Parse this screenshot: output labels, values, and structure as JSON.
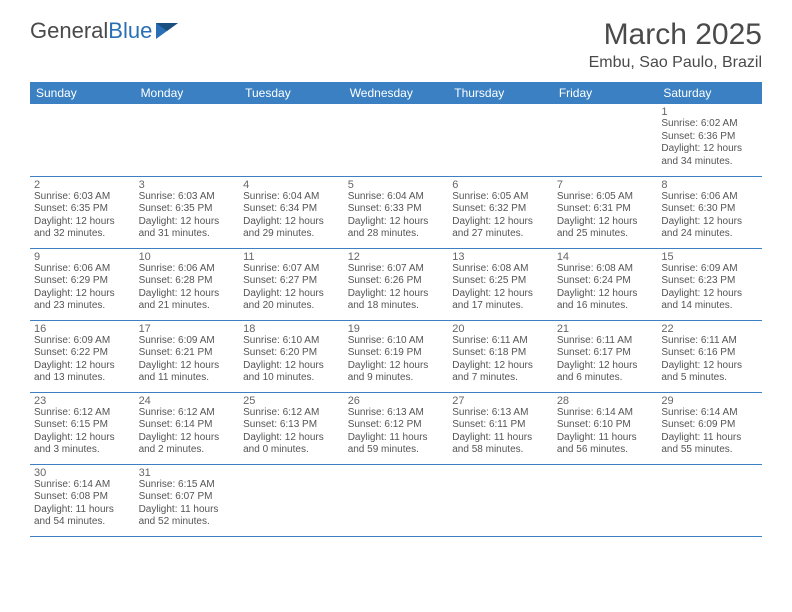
{
  "header": {
    "logo_general": "General",
    "logo_blue": "Blue",
    "title": "March 2025",
    "subtitle": "Embu, Sao Paulo, Brazil"
  },
  "colors": {
    "header_bg": "#3a80c3",
    "header_text": "#ffffff",
    "border": "#3a80c3",
    "text": "#555555",
    "title_text": "#4a4a4a"
  },
  "days_of_week": [
    "Sunday",
    "Monday",
    "Tuesday",
    "Wednesday",
    "Thursday",
    "Friday",
    "Saturday"
  ],
  "weeks": [
    [
      null,
      null,
      null,
      null,
      null,
      null,
      {
        "n": "1",
        "sunrise": "Sunrise: 6:02 AM",
        "sunset": "Sunset: 6:36 PM",
        "day1": "Daylight: 12 hours",
        "day2": "and 34 minutes."
      }
    ],
    [
      {
        "n": "2",
        "sunrise": "Sunrise: 6:03 AM",
        "sunset": "Sunset: 6:35 PM",
        "day1": "Daylight: 12 hours",
        "day2": "and 32 minutes."
      },
      {
        "n": "3",
        "sunrise": "Sunrise: 6:03 AM",
        "sunset": "Sunset: 6:35 PM",
        "day1": "Daylight: 12 hours",
        "day2": "and 31 minutes."
      },
      {
        "n": "4",
        "sunrise": "Sunrise: 6:04 AM",
        "sunset": "Sunset: 6:34 PM",
        "day1": "Daylight: 12 hours",
        "day2": "and 29 minutes."
      },
      {
        "n": "5",
        "sunrise": "Sunrise: 6:04 AM",
        "sunset": "Sunset: 6:33 PM",
        "day1": "Daylight: 12 hours",
        "day2": "and 28 minutes."
      },
      {
        "n": "6",
        "sunrise": "Sunrise: 6:05 AM",
        "sunset": "Sunset: 6:32 PM",
        "day1": "Daylight: 12 hours",
        "day2": "and 27 minutes."
      },
      {
        "n": "7",
        "sunrise": "Sunrise: 6:05 AM",
        "sunset": "Sunset: 6:31 PM",
        "day1": "Daylight: 12 hours",
        "day2": "and 25 minutes."
      },
      {
        "n": "8",
        "sunrise": "Sunrise: 6:06 AM",
        "sunset": "Sunset: 6:30 PM",
        "day1": "Daylight: 12 hours",
        "day2": "and 24 minutes."
      }
    ],
    [
      {
        "n": "9",
        "sunrise": "Sunrise: 6:06 AM",
        "sunset": "Sunset: 6:29 PM",
        "day1": "Daylight: 12 hours",
        "day2": "and 23 minutes."
      },
      {
        "n": "10",
        "sunrise": "Sunrise: 6:06 AM",
        "sunset": "Sunset: 6:28 PM",
        "day1": "Daylight: 12 hours",
        "day2": "and 21 minutes."
      },
      {
        "n": "11",
        "sunrise": "Sunrise: 6:07 AM",
        "sunset": "Sunset: 6:27 PM",
        "day1": "Daylight: 12 hours",
        "day2": "and 20 minutes."
      },
      {
        "n": "12",
        "sunrise": "Sunrise: 6:07 AM",
        "sunset": "Sunset: 6:26 PM",
        "day1": "Daylight: 12 hours",
        "day2": "and 18 minutes."
      },
      {
        "n": "13",
        "sunrise": "Sunrise: 6:08 AM",
        "sunset": "Sunset: 6:25 PM",
        "day1": "Daylight: 12 hours",
        "day2": "and 17 minutes."
      },
      {
        "n": "14",
        "sunrise": "Sunrise: 6:08 AM",
        "sunset": "Sunset: 6:24 PM",
        "day1": "Daylight: 12 hours",
        "day2": "and 16 minutes."
      },
      {
        "n": "15",
        "sunrise": "Sunrise: 6:09 AM",
        "sunset": "Sunset: 6:23 PM",
        "day1": "Daylight: 12 hours",
        "day2": "and 14 minutes."
      }
    ],
    [
      {
        "n": "16",
        "sunrise": "Sunrise: 6:09 AM",
        "sunset": "Sunset: 6:22 PM",
        "day1": "Daylight: 12 hours",
        "day2": "and 13 minutes."
      },
      {
        "n": "17",
        "sunrise": "Sunrise: 6:09 AM",
        "sunset": "Sunset: 6:21 PM",
        "day1": "Daylight: 12 hours",
        "day2": "and 11 minutes."
      },
      {
        "n": "18",
        "sunrise": "Sunrise: 6:10 AM",
        "sunset": "Sunset: 6:20 PM",
        "day1": "Daylight: 12 hours",
        "day2": "and 10 minutes."
      },
      {
        "n": "19",
        "sunrise": "Sunrise: 6:10 AM",
        "sunset": "Sunset: 6:19 PM",
        "day1": "Daylight: 12 hours",
        "day2": "and 9 minutes."
      },
      {
        "n": "20",
        "sunrise": "Sunrise: 6:11 AM",
        "sunset": "Sunset: 6:18 PM",
        "day1": "Daylight: 12 hours",
        "day2": "and 7 minutes."
      },
      {
        "n": "21",
        "sunrise": "Sunrise: 6:11 AM",
        "sunset": "Sunset: 6:17 PM",
        "day1": "Daylight: 12 hours",
        "day2": "and 6 minutes."
      },
      {
        "n": "22",
        "sunrise": "Sunrise: 6:11 AM",
        "sunset": "Sunset: 6:16 PM",
        "day1": "Daylight: 12 hours",
        "day2": "and 5 minutes."
      }
    ],
    [
      {
        "n": "23",
        "sunrise": "Sunrise: 6:12 AM",
        "sunset": "Sunset: 6:15 PM",
        "day1": "Daylight: 12 hours",
        "day2": "and 3 minutes."
      },
      {
        "n": "24",
        "sunrise": "Sunrise: 6:12 AM",
        "sunset": "Sunset: 6:14 PM",
        "day1": "Daylight: 12 hours",
        "day2": "and 2 minutes."
      },
      {
        "n": "25",
        "sunrise": "Sunrise: 6:12 AM",
        "sunset": "Sunset: 6:13 PM",
        "day1": "Daylight: 12 hours",
        "day2": "and 0 minutes."
      },
      {
        "n": "26",
        "sunrise": "Sunrise: 6:13 AM",
        "sunset": "Sunset: 6:12 PM",
        "day1": "Daylight: 11 hours",
        "day2": "and 59 minutes."
      },
      {
        "n": "27",
        "sunrise": "Sunrise: 6:13 AM",
        "sunset": "Sunset: 6:11 PM",
        "day1": "Daylight: 11 hours",
        "day2": "and 58 minutes."
      },
      {
        "n": "28",
        "sunrise": "Sunrise: 6:14 AM",
        "sunset": "Sunset: 6:10 PM",
        "day1": "Daylight: 11 hours",
        "day2": "and 56 minutes."
      },
      {
        "n": "29",
        "sunrise": "Sunrise: 6:14 AM",
        "sunset": "Sunset: 6:09 PM",
        "day1": "Daylight: 11 hours",
        "day2": "and 55 minutes."
      }
    ],
    [
      {
        "n": "30",
        "sunrise": "Sunrise: 6:14 AM",
        "sunset": "Sunset: 6:08 PM",
        "day1": "Daylight: 11 hours",
        "day2": "and 54 minutes."
      },
      {
        "n": "31",
        "sunrise": "Sunrise: 6:15 AM",
        "sunset": "Sunset: 6:07 PM",
        "day1": "Daylight: 11 hours",
        "day2": "and 52 minutes."
      },
      null,
      null,
      null,
      null,
      null
    ]
  ]
}
